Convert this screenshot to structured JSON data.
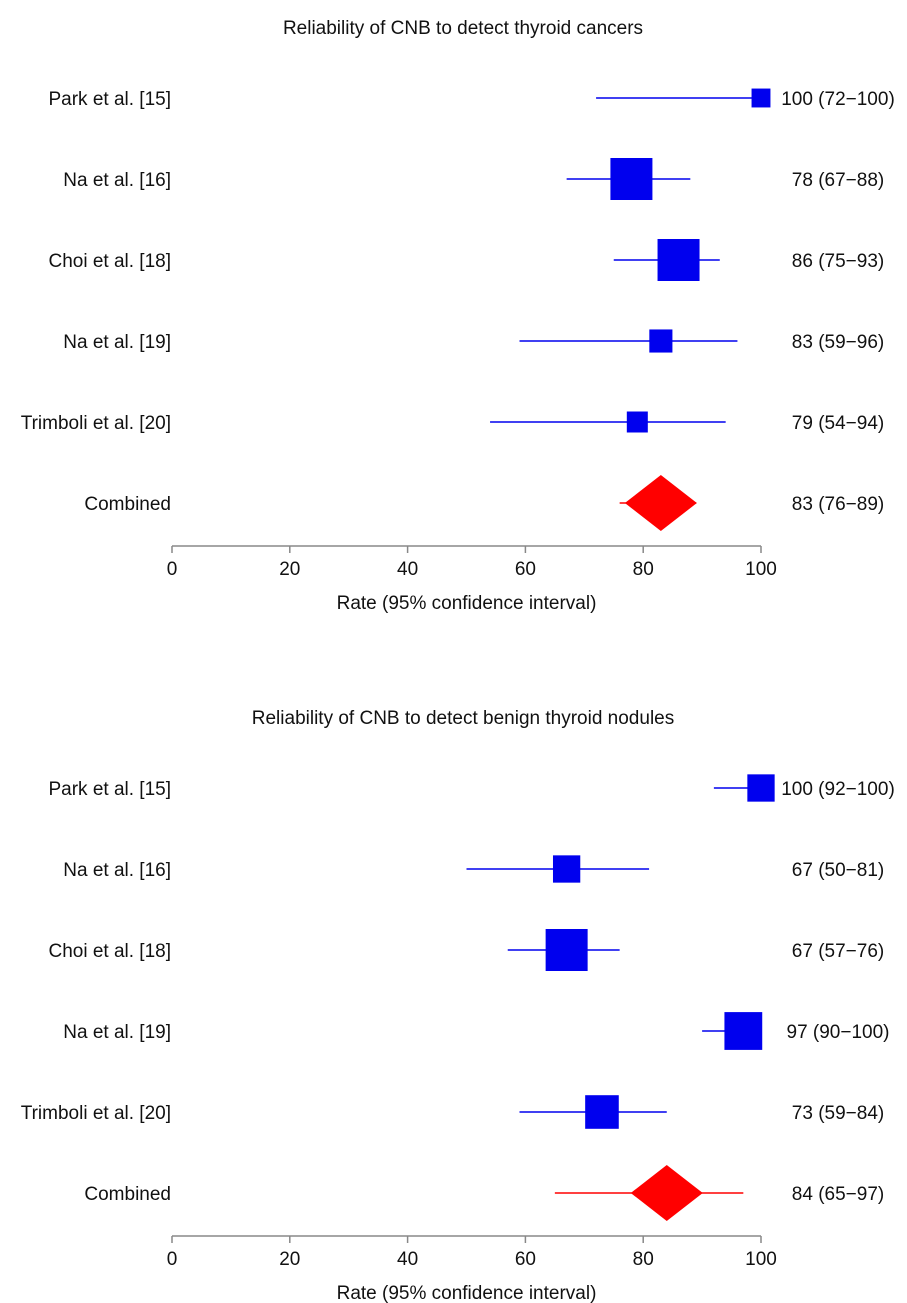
{
  "chart_data": [
    {
      "type": "forest",
      "title": "Reliability of CNB to detect thyroid cancers",
      "xlabel": "Rate (95% confidence interval)",
      "xlim": [
        0,
        100
      ],
      "xticks": [
        "0",
        "20",
        "40",
        "60",
        "80",
        "100"
      ],
      "study_color": "#0000ee",
      "combined_color": "#ff0000",
      "studies": [
        {
          "label": "Park et al. [15]",
          "rate": 100,
          "lower": 72,
          "upper": 100,
          "ci_text": "100 (72−100)",
          "weight": 0.45
        },
        {
          "label": "Na et al. [16]",
          "rate": 78,
          "lower": 67,
          "upper": 88,
          "ci_text": "78 (67−88)",
          "weight": 1.0
        },
        {
          "label": "Choi et al. [18]",
          "rate": 86,
          "lower": 75,
          "upper": 93,
          "ci_text": "86 (75−93)",
          "weight": 1.0
        },
        {
          "label": "Na et al. [19]",
          "rate": 83,
          "lower": 59,
          "upper": 96,
          "ci_text": "83 (59−96)",
          "weight": 0.55
        },
        {
          "label": "Trimboli et al. [20]",
          "rate": 79,
          "lower": 54,
          "upper": 94,
          "ci_text": "79 (54−94)",
          "weight": 0.5
        }
      ],
      "combined": {
        "label": "Combined",
        "rate": 83,
        "lower": 76,
        "upper": 89,
        "ci_text": "83 (76−89)"
      }
    },
    {
      "type": "forest",
      "title": "Reliability of CNB to detect benign thyroid nodules",
      "xlabel": "Rate (95% confidence interval)",
      "xlim": [
        0,
        100
      ],
      "xticks": [
        "0",
        "20",
        "40",
        "60",
        "80",
        "100"
      ],
      "study_color": "#0000ee",
      "combined_color": "#ff0000",
      "studies": [
        {
          "label": "Park et al. [15]",
          "rate": 100,
          "lower": 92,
          "upper": 100,
          "ci_text": "100 (92−100)",
          "weight": 0.65
        },
        {
          "label": "Na et al. [16]",
          "rate": 67,
          "lower": 50,
          "upper": 81,
          "ci_text": "67 (50−81)",
          "weight": 0.65
        },
        {
          "label": "Choi et al. [18]",
          "rate": 67,
          "lower": 57,
          "upper": 76,
          "ci_text": "67 (57−76)",
          "weight": 1.0
        },
        {
          "label": "Na et al. [19]",
          "rate": 97,
          "lower": 90,
          "upper": 100,
          "ci_text": "97 (90−100)",
          "weight": 0.9
        },
        {
          "label": "Trimboli et al. [20]",
          "rate": 73,
          "lower": 59,
          "upper": 84,
          "ci_text": "73 (59−84)",
          "weight": 0.8
        }
      ],
      "combined": {
        "label": "Combined",
        "rate": 84,
        "lower": 65,
        "upper": 97,
        "ci_text": "84 (65−97)"
      }
    }
  ]
}
